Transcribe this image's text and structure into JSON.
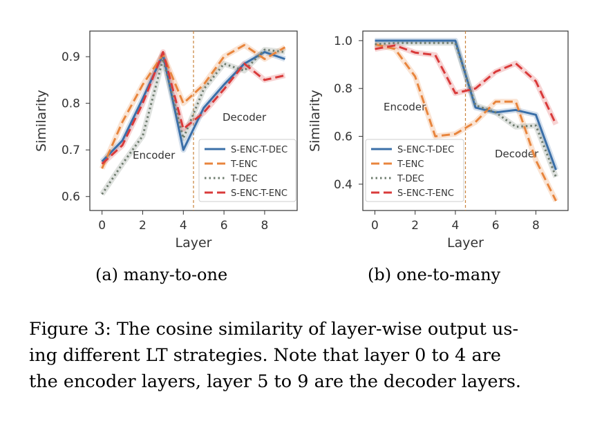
{
  "chart_data": [
    {
      "type": "line",
      "subcaption": "(a) many-to-one",
      "xlabel": "Layer",
      "ylabel": "Similarity",
      "x": [
        0,
        1,
        2,
        3,
        4,
        5,
        6,
        7,
        8,
        9
      ],
      "xticks": [
        0,
        2,
        4,
        6,
        8
      ],
      "xtick_labels": [
        "0",
        "2",
        "4",
        "6",
        "8"
      ],
      "yticks": [
        0.6,
        0.7,
        0.8,
        0.9
      ],
      "ytick_labels": [
        "0.6",
        "0.7",
        "0.8",
        "0.9"
      ],
      "xlim": [
        -0.6,
        9.6
      ],
      "ylim": [
        0.57,
        0.955
      ],
      "divider_x": 4.5,
      "region_labels": {
        "encoder": "Encoder",
        "decoder": "Decoder"
      },
      "legend_position": "lower-right",
      "series": [
        {
          "name": "S-ENC-T-DEC",
          "color": "#3a6fa8",
          "dash": "solid",
          "values": [
            0.675,
            0.72,
            0.81,
            0.905,
            0.7,
            0.79,
            0.84,
            0.885,
            0.91,
            0.895
          ]
        },
        {
          "name": "T-ENC",
          "color": "#e8853d",
          "dash": "dashed",
          "values": [
            0.66,
            0.76,
            0.84,
            0.905,
            0.8,
            0.84,
            0.9,
            0.925,
            0.895,
            0.92
          ]
        },
        {
          "name": "T-DEC",
          "color": "#6f7d6f",
          "dash": "dotted",
          "values": [
            0.605,
            0.67,
            0.73,
            0.895,
            0.725,
            0.83,
            0.885,
            0.87,
            0.915,
            0.91
          ]
        },
        {
          "name": "S-ENC-T-ENC",
          "color": "#d93a3a",
          "dash": "dashed",
          "values": [
            0.67,
            0.71,
            0.8,
            0.91,
            0.745,
            0.78,
            0.83,
            0.885,
            0.85,
            0.86
          ]
        }
      ]
    },
    {
      "type": "line",
      "subcaption": "(b) one-to-many",
      "xlabel": "Layer",
      "ylabel": "Similarity",
      "x": [
        0,
        1,
        2,
        3,
        4,
        5,
        6,
        7,
        8,
        9
      ],
      "xticks": [
        0,
        2,
        4,
        6,
        8
      ],
      "xtick_labels": [
        "0",
        "2",
        "4",
        "6",
        "8"
      ],
      "yticks": [
        0.4,
        0.6,
        0.8,
        1.0
      ],
      "ytick_labels": [
        "0.4",
        "0.6",
        "0.8",
        "1.0"
      ],
      "xlim": [
        -0.6,
        9.6
      ],
      "ylim": [
        0.29,
        1.04
      ],
      "divider_x": 4.5,
      "region_labels": {
        "encoder": "Encoder",
        "decoder": "Decoder"
      },
      "legend_position": "lower-left",
      "series": [
        {
          "name": "S-ENC-T-DEC",
          "color": "#3a6fa8",
          "dash": "solid",
          "values": [
            1.0,
            1.0,
            1.0,
            1.0,
            1.0,
            0.72,
            0.7,
            0.71,
            0.69,
            0.46
          ]
        },
        {
          "name": "T-ENC",
          "color": "#e8853d",
          "dash": "dashed",
          "values": [
            0.985,
            0.965,
            0.85,
            0.6,
            0.61,
            0.66,
            0.745,
            0.745,
            0.5,
            0.33
          ]
        },
        {
          "name": "T-DEC",
          "color": "#6f7d6f",
          "dash": "dotted",
          "values": [
            0.985,
            0.99,
            0.99,
            0.99,
            0.99,
            0.73,
            0.7,
            0.64,
            0.645,
            0.43
          ]
        },
        {
          "name": "S-ENC-T-ENC",
          "color": "#d93a3a",
          "dash": "dashed",
          "values": [
            0.965,
            0.98,
            0.95,
            0.94,
            0.78,
            0.8,
            0.87,
            0.905,
            0.83,
            0.65
          ]
        }
      ]
    }
  ],
  "caption": {
    "line1": "Figure 3: The cosine similarity of layer-wise output us-",
    "line2": "ing different LT strategies.  Note that layer 0 to 4 are",
    "line3": "the encoder layers, layer 5 to 9 are the decoder layers."
  }
}
